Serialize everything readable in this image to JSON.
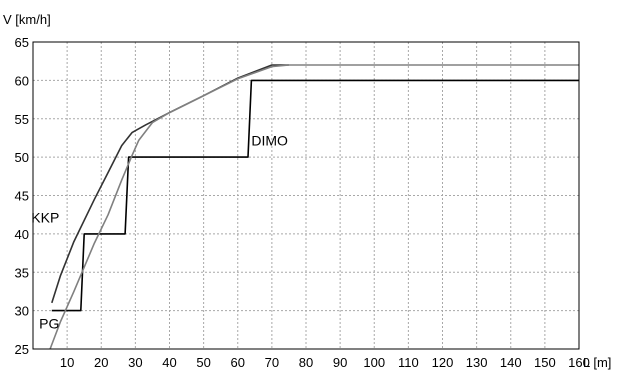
{
  "chart_data": {
    "type": "line",
    "xlabel": "L [m]",
    "ylabel": "V [km/h]",
    "xlim": [
      0,
      160
    ],
    "ylim": [
      25,
      65
    ],
    "xticks": [
      10,
      20,
      30,
      40,
      50,
      60,
      70,
      80,
      90,
      100,
      110,
      120,
      130,
      140,
      150,
      160
    ],
    "yticks": [
      25,
      30,
      35,
      40,
      45,
      50,
      55,
      60,
      65
    ],
    "grid": true,
    "series": [
      {
        "name": "DIMO",
        "color": "#000000",
        "points": [
          [
            5.5,
            30
          ],
          [
            14,
            30
          ],
          [
            15,
            40
          ],
          [
            27,
            40
          ],
          [
            28,
            50
          ],
          [
            63,
            50
          ],
          [
            64,
            60
          ],
          [
            160,
            60
          ]
        ]
      },
      {
        "name": "KKP",
        "color": "#333333",
        "points": [
          [
            5.5,
            31
          ],
          [
            8,
            34.5
          ],
          [
            12,
            39
          ],
          [
            18,
            44.5
          ],
          [
            22,
            48
          ],
          [
            26,
            51.5
          ],
          [
            29,
            53.2
          ],
          [
            33,
            54.2
          ],
          [
            40,
            55.8
          ],
          [
            50,
            58
          ],
          [
            60,
            60.3
          ],
          [
            70,
            62
          ],
          [
            75,
            62
          ]
        ]
      },
      {
        "name": "PG",
        "color": "#808080",
        "points": [
          [
            5,
            25
          ],
          [
            8,
            28.5
          ],
          [
            12,
            32.5
          ],
          [
            18,
            38.8
          ],
          [
            22,
            42.5
          ],
          [
            26,
            47
          ],
          [
            29,
            50.2
          ],
          [
            31,
            52.2
          ],
          [
            35,
            54.5
          ],
          [
            40,
            55.8
          ],
          [
            50,
            58
          ],
          [
            60,
            60.2
          ],
          [
            70,
            61.8
          ],
          [
            75,
            62
          ],
          [
            160,
            62
          ]
        ]
      }
    ],
    "annotations": [
      {
        "text": "DIMO",
        "series": "DIMO",
        "x": 64,
        "y": 51.5
      },
      {
        "text": "KKP",
        "series": "KKP",
        "x": -0.5,
        "y": 41.5
      },
      {
        "text": "PG",
        "series": "PG",
        "x": 1.8,
        "y": 27.7
      }
    ]
  }
}
